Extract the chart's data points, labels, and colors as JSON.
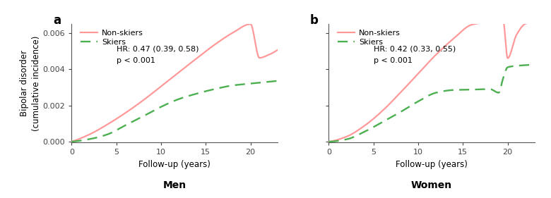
{
  "panel_a": {
    "title": "Men",
    "panel_label": "a",
    "hr_text": "HR: 0.47 (0.39, 0.58)",
    "p_text": "p < 0.001",
    "nonskier_color": "#FF9999",
    "skier_color": "#4CAF50",
    "xlim": [
      0,
      23
    ],
    "ylim": [
      -5e-05,
      0.0065
    ],
    "yticks": [
      0.0,
      0.002,
      0.004,
      0.006
    ],
    "xticks": [
      0,
      5,
      10,
      15,
      20
    ],
    "nonskier_knots_x": [
      0,
      2,
      4,
      6,
      8,
      10,
      12,
      14,
      16,
      18,
      20,
      21,
      22,
      23
    ],
    "nonskier_knots_y": [
      0,
      0.0004,
      0.00095,
      0.00158,
      0.00228,
      0.00305,
      0.00383,
      0.0046,
      0.00535,
      0.006,
      0.00648,
      0.00462,
      0.00478,
      0.00505
    ],
    "skier_knots_x": [
      0,
      2,
      4,
      6,
      8,
      10,
      12,
      14,
      16,
      18,
      20,
      22,
      23
    ],
    "skier_knots_y": [
      0,
      0.00014,
      0.0004,
      0.0009,
      0.0014,
      0.00192,
      0.00235,
      0.00265,
      0.0029,
      0.0031,
      0.0032,
      0.0033,
      0.00335
    ]
  },
  "panel_b": {
    "title": "Women",
    "panel_label": "b",
    "hr_text": "HR: 0.42 (0.33, 0.55)",
    "p_text": "p < 0.001",
    "nonskier_color": "#FF9999",
    "skier_color": "#4CAF50",
    "xlim": [
      0,
      23
    ],
    "ylim": [
      -5e-05,
      0.0065
    ],
    "yticks": [
      0.0,
      0.002,
      0.004,
      0.006
    ],
    "xticks": [
      0,
      5,
      10,
      15,
      20
    ],
    "nonskier_knots_x": [
      0,
      2,
      4,
      6,
      8,
      10,
      12,
      14,
      16,
      18,
      19.5,
      20,
      21,
      22,
      23
    ],
    "nonskier_knots_y": [
      0,
      0.00028,
      0.00088,
      0.0017,
      0.0027,
      0.00375,
      0.0048,
      0.0057,
      0.00645,
      0.0066,
      0.00665,
      0.0046,
      0.0059,
      0.0065,
      0.0066
    ],
    "skier_knots_x": [
      0,
      2,
      4,
      6,
      8,
      10,
      12,
      14,
      16,
      18,
      19,
      19.5,
      20,
      21,
      22,
      23
    ],
    "skier_knots_y": [
      0,
      0.00013,
      0.00055,
      0.00108,
      0.00163,
      0.00222,
      0.0027,
      0.00285,
      0.00287,
      0.0029,
      0.0027,
      0.0035,
      0.0041,
      0.00418,
      0.00422,
      0.00425
    ]
  },
  "ylabel": "Bipolar disorder\n(cumulative incidence)",
  "xlabel": "Follow-up (years)",
  "legend_nonskiers": "Non-skiers",
  "legend_skiers": "Skiers",
  "bg_color": "#FFFFFF"
}
